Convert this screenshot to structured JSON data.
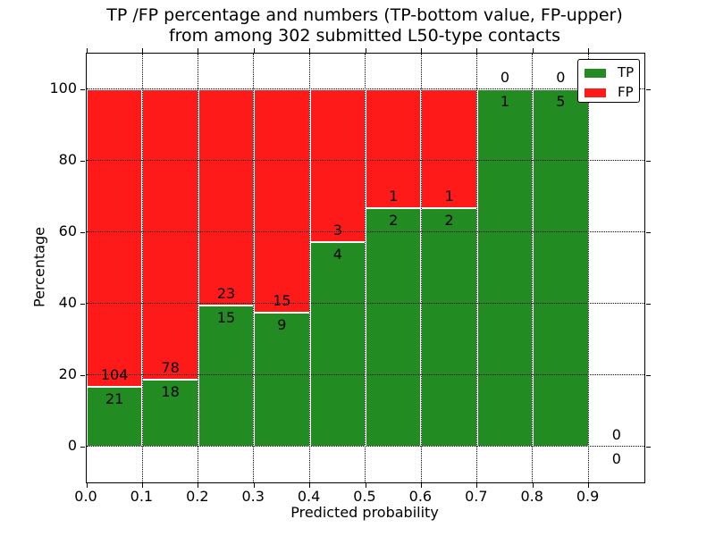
{
  "chart_data": {
    "type": "bar",
    "stacked": true,
    "title_lines": [
      "TP /FP percentage and numbers (TP-bottom value, FP-upper)",
      "from among 302 submitted L50-type contacts"
    ],
    "xlabel": "Predicted probability",
    "ylabel": "Percentage",
    "xlim": [
      0.0,
      1.0
    ],
    "ylim": [
      -10,
      110
    ],
    "grid": true,
    "grid_style": "dotted",
    "x_ticks": {
      "values": [
        0.0,
        0.1,
        0.2,
        0.3,
        0.4,
        0.5,
        0.6,
        0.7,
        0.8,
        0.9
      ],
      "labels": [
        "0.0",
        "0.1",
        "0.2",
        "0.3",
        "0.4",
        "0.5",
        "0.6",
        "0.7",
        "0.8",
        "0.9"
      ]
    },
    "y_ticks": {
      "values": [
        0,
        20,
        40,
        60,
        80,
        100
      ],
      "labels": [
        "0",
        "20",
        "40",
        "60",
        "80",
        "100"
      ]
    },
    "legend": {
      "position": "upper right",
      "entries": [
        {
          "label": "TP",
          "color": "#228b22"
        },
        {
          "label": "FP",
          "color": "#ff1a1a"
        }
      ]
    },
    "total_submitted": 302,
    "bins": [
      {
        "range": [
          0.0,
          0.1
        ],
        "tp": 21,
        "fp": 104
      },
      {
        "range": [
          0.1,
          0.2
        ],
        "tp": 18,
        "fp": 78
      },
      {
        "range": [
          0.2,
          0.3
        ],
        "tp": 15,
        "fp": 23
      },
      {
        "range": [
          0.3,
          0.4
        ],
        "tp": 9,
        "fp": 15
      },
      {
        "range": [
          0.4,
          0.5
        ],
        "tp": 4,
        "fp": 3
      },
      {
        "range": [
          0.5,
          0.6
        ],
        "tp": 2,
        "fp": 1
      },
      {
        "range": [
          0.6,
          0.7
        ],
        "tp": 2,
        "fp": 1
      },
      {
        "range": [
          0.7,
          0.8
        ],
        "tp": 1,
        "fp": 0
      },
      {
        "range": [
          0.8,
          0.9
        ],
        "tp": 5,
        "fp": 0
      },
      {
        "range": [
          0.9,
          1.0
        ],
        "tp": 0,
        "fp": 0
      }
    ],
    "colors": {
      "tp": "#228b22",
      "fp": "#ff1a1a",
      "grid": "#000000",
      "bar_edge": "#ffffff",
      "spine": "#000000"
    }
  }
}
